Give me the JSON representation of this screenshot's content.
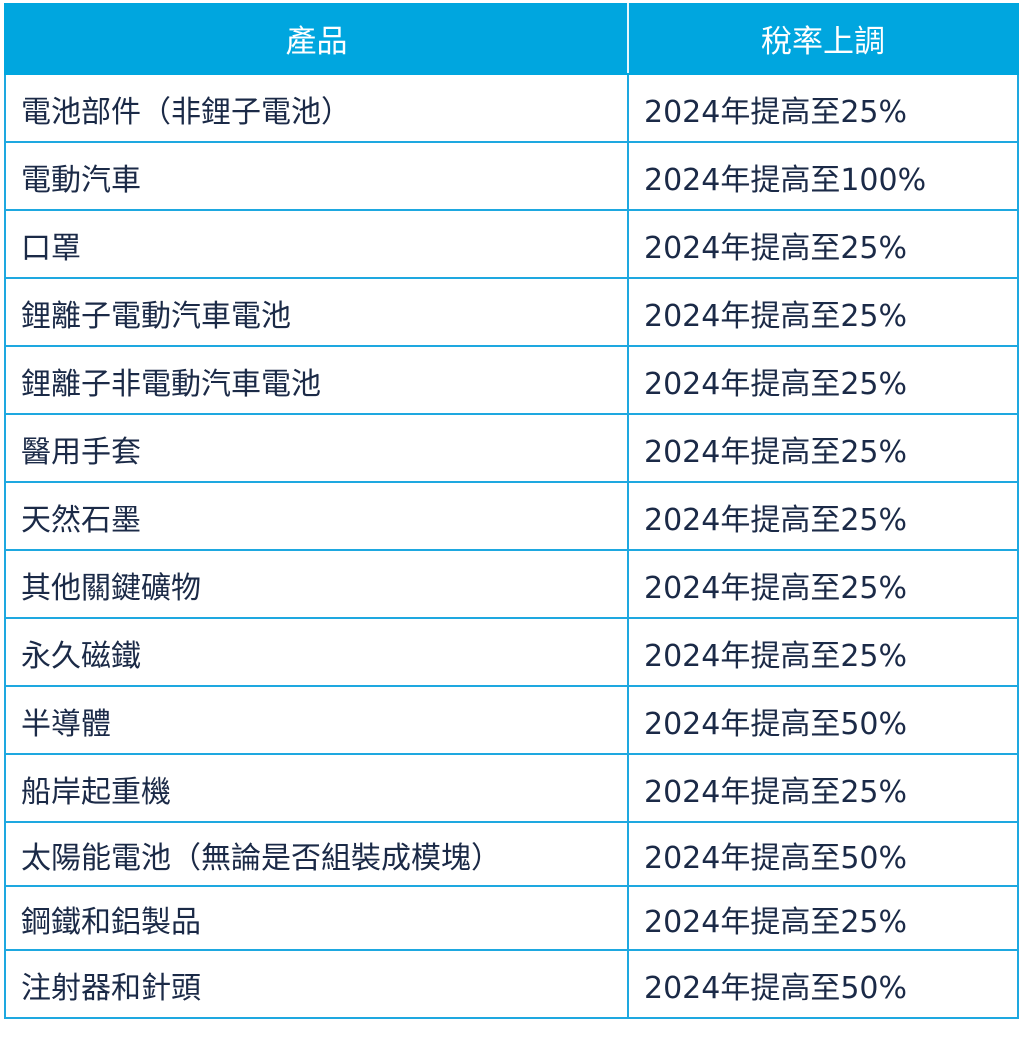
{
  "table": {
    "headers": {
      "product": "產品",
      "rate": "稅率上調"
    },
    "rows": [
      {
        "product": "電池部件（非鋰子電池）",
        "rate": "2024年提高至25%"
      },
      {
        "product": "電動汽車",
        "rate": "2024年提高至100%"
      },
      {
        "product": "口罩",
        "rate": "2024年提高至25%"
      },
      {
        "product": "鋰離子電動汽車電池",
        "rate": "2024年提高至25%"
      },
      {
        "product": "鋰離子非電動汽車電池",
        "rate": "2024年提高至25%"
      },
      {
        "product": "醫用手套",
        "rate": "2024年提高至25%"
      },
      {
        "product": "天然石墨",
        "rate": "2024年提高至25%"
      },
      {
        "product": "其他關鍵礦物",
        "rate": "2024年提高至25%"
      },
      {
        "product": "永久磁鐵",
        "rate": "2024年提高至25%"
      },
      {
        "product": "半導體",
        "rate": "2024年提高至50%"
      },
      {
        "product": "船岸起重機",
        "rate": "2024年提高至25%"
      },
      {
        "product": "太陽能電池（無論是否組裝成模塊）",
        "rate": "2024年提高至50%"
      },
      {
        "product": "鋼鐵和鋁製品",
        "rate": "2024年提高至25%"
      },
      {
        "product": "注射器和針頭",
        "rate": "2024年提高至50%"
      }
    ]
  },
  "colors": {
    "header_bg": "#00a6df",
    "header_text": "#ffffff",
    "border": "#1ea8e0",
    "body_text": "#1b2a47"
  }
}
